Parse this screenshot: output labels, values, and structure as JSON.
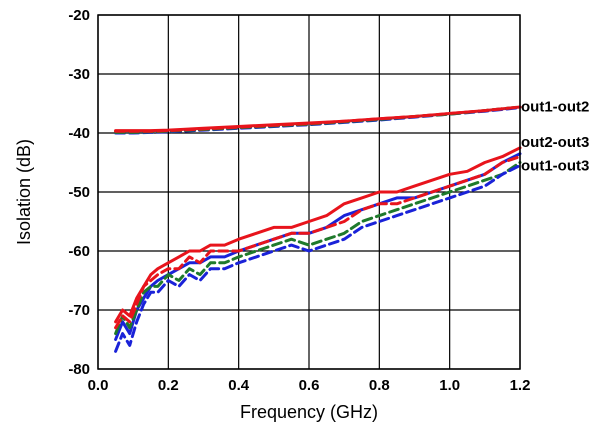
{
  "chart_data": {
    "type": "line",
    "xlabel": "Frequency (GHz)",
    "ylabel": "Isolation (dB)",
    "xlim": [
      0.0,
      1.2
    ],
    "ylim": [
      -80,
      -20
    ],
    "xticks": [
      "0.0",
      "0.2",
      "0.4",
      "0.6",
      "0.8",
      "1.0",
      "1.2"
    ],
    "yticks": [
      "-20",
      "-30",
      "-40",
      "-50",
      "-60",
      "-70",
      "-80"
    ],
    "grid": true,
    "colors": {
      "red": "#e8141c",
      "blue": "#1a22d8",
      "green": "#1f7a2c"
    },
    "annotations": [
      {
        "text": "out1-out2",
        "x": 1.2,
        "y": -35.5
      },
      {
        "text": "out2-out3",
        "x": 1.2,
        "y": -41.5
      },
      {
        "text": "out1-out3",
        "x": 1.2,
        "y": -45.5
      }
    ],
    "series": [
      {
        "color": "red",
        "dash": false,
        "x": [
          0.05,
          0.1,
          0.15,
          0.2,
          0.3,
          0.4,
          0.5,
          0.6,
          0.7,
          0.8,
          0.9,
          1.0,
          1.1,
          1.2
        ],
        "y": [
          -39.6,
          -39.6,
          -39.6,
          -39.5,
          -39.2,
          -38.9,
          -38.6,
          -38.3,
          -38.0,
          -37.6,
          -37.2,
          -36.7,
          -36.2,
          -35.6
        ]
      },
      {
        "color": "blue",
        "dash": true,
        "x": [
          0.05,
          0.1,
          0.15,
          0.2,
          0.3,
          0.4,
          0.5,
          0.6,
          0.7,
          0.8,
          0.9,
          1.0,
          1.1,
          1.2
        ],
        "y": [
          -40.0,
          -40.0,
          -39.9,
          -39.8,
          -39.5,
          -39.2,
          -38.9,
          -38.6,
          -38.2,
          -37.8,
          -37.3,
          -36.8,
          -36.3,
          -35.7
        ]
      },
      {
        "color": "green",
        "dash": true,
        "x": [
          0.05,
          0.1,
          0.15,
          0.2,
          0.3,
          0.4,
          0.5,
          0.6,
          0.7,
          0.8,
          0.9,
          1.0,
          1.1,
          1.2
        ],
        "y": [
          -39.9,
          -39.9,
          -39.8,
          -39.7,
          -39.4,
          -39.1,
          -38.8,
          -38.5,
          -38.1,
          -37.7,
          -37.2,
          -36.8,
          -36.2,
          -35.6
        ]
      },
      {
        "color": "red",
        "dash": true,
        "x": [
          0.05,
          0.1,
          0.15,
          0.2,
          0.3,
          0.4,
          0.5,
          0.6,
          0.7,
          0.8,
          0.9,
          1.0,
          1.1,
          1.2
        ],
        "y": [
          -39.7,
          -39.7,
          -39.7,
          -39.6,
          -39.3,
          -39.0,
          -38.7,
          -38.4,
          -38.0,
          -37.6,
          -37.2,
          -36.7,
          -36.2,
          -35.6
        ]
      },
      {
        "color": "red",
        "dash": false,
        "x": [
          0.05,
          0.07,
          0.09,
          0.11,
          0.13,
          0.15,
          0.17,
          0.2,
          0.23,
          0.26,
          0.29,
          0.32,
          0.36,
          0.4,
          0.45,
          0.5,
          0.55,
          0.6,
          0.65,
          0.7,
          0.75,
          0.8,
          0.85,
          0.9,
          0.95,
          1.0,
          1.05,
          1.1,
          1.15,
          1.2
        ],
        "y": [
          -72,
          -70,
          -71,
          -68,
          -66,
          -64,
          -63,
          -62,
          -61,
          -60,
          -60,
          -59,
          -59,
          -58,
          -57,
          -56,
          -56,
          -55,
          -54,
          -52,
          -51,
          -50,
          -50,
          -49,
          -48,
          -47,
          -46.5,
          -45,
          -44,
          -42.5
        ]
      },
      {
        "color": "blue",
        "dash": false,
        "x": [
          0.05,
          0.07,
          0.09,
          0.11,
          0.13,
          0.15,
          0.17,
          0.2,
          0.23,
          0.26,
          0.29,
          0.32,
          0.36,
          0.4,
          0.45,
          0.5,
          0.55,
          0.6,
          0.65,
          0.7,
          0.75,
          0.8,
          0.85,
          0.9,
          0.95,
          1.0,
          1.05,
          1.1,
          1.15,
          1.2
        ],
        "y": [
          -75,
          -72,
          -74,
          -70,
          -68,
          -66,
          -65,
          -64,
          -63,
          -62,
          -62,
          -61,
          -61,
          -60,
          -59,
          -58,
          -57,
          -57,
          -56,
          -54,
          -53,
          -52,
          -51,
          -51,
          -50,
          -49,
          -48,
          -47,
          -45,
          -43.5
        ]
      },
      {
        "color": "green",
        "dash": true,
        "x": [
          0.05,
          0.07,
          0.09,
          0.11,
          0.13,
          0.15,
          0.17,
          0.2,
          0.23,
          0.26,
          0.29,
          0.32,
          0.36,
          0.4,
          0.45,
          0.5,
          0.55,
          0.6,
          0.65,
          0.7,
          0.75,
          0.8,
          0.85,
          0.9,
          0.95,
          1.0,
          1.05,
          1.1,
          1.15,
          1.2
        ],
        "y": [
          -74,
          -71,
          -73,
          -70,
          -67,
          -66,
          -66,
          -64,
          -65,
          -63,
          -64,
          -62,
          -62,
          -61,
          -60,
          -59,
          -58,
          -59,
          -58,
          -57,
          -55,
          -54,
          -53,
          -52,
          -51,
          -50,
          -49,
          -48,
          -47,
          -45
        ]
      },
      {
        "color": "blue",
        "dash": true,
        "x": [
          0.05,
          0.07,
          0.09,
          0.11,
          0.13,
          0.15,
          0.17,
          0.2,
          0.23,
          0.26,
          0.29,
          0.32,
          0.36,
          0.4,
          0.45,
          0.5,
          0.55,
          0.6,
          0.65,
          0.7,
          0.75,
          0.8,
          0.85,
          0.9,
          0.95,
          1.0,
          1.05,
          1.1,
          1.15,
          1.2
        ],
        "y": [
          -77,
          -74,
          -76,
          -72,
          -69,
          -67,
          -67,
          -65,
          -66,
          -64,
          -65,
          -63,
          -63,
          -62,
          -61,
          -60,
          -59,
          -60,
          -59,
          -58,
          -56,
          -55,
          -54,
          -53,
          -52,
          -51,
          -50,
          -49,
          -47,
          -45.5
        ]
      },
      {
        "color": "red",
        "dash": true,
        "x": [
          0.05,
          0.07,
          0.09,
          0.11,
          0.13,
          0.15,
          0.17,
          0.2,
          0.23,
          0.26,
          0.29,
          0.32,
          0.36,
          0.4,
          0.45,
          0.5,
          0.55,
          0.6,
          0.65,
          0.7,
          0.75,
          0.8,
          0.85,
          0.9,
          0.95,
          1.0,
          1.05,
          1.1,
          1.15,
          1.2
        ],
        "y": [
          -73,
          -71,
          -72,
          -69,
          -66,
          -65,
          -64,
          -63,
          -63,
          -61,
          -62,
          -60,
          -60,
          -60,
          -59,
          -58,
          -57,
          -57,
          -56,
          -55,
          -53,
          -52,
          -52,
          -51,
          -50,
          -49,
          -48,
          -47,
          -45,
          -44
        ]
      }
    ]
  }
}
